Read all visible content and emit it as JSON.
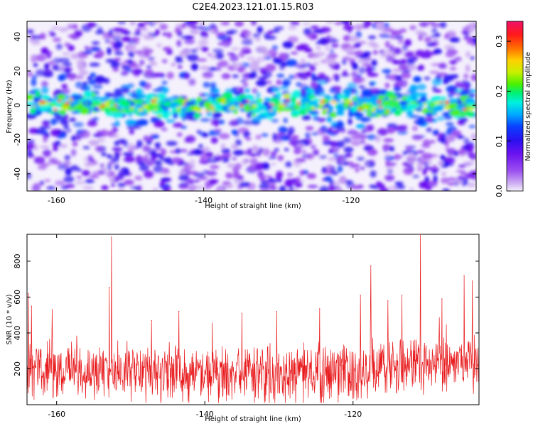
{
  "figure": {
    "title": "C2E4.2023.121.01.15.R03"
  },
  "colors": {
    "snr_line": "#e8191c",
    "colormap": [
      "#f4f0fc",
      "#caa8f2",
      "#9b4ff0",
      "#6a12f0",
      "#2a10f0",
      "#0a40ff",
      "#00a8ff",
      "#00f0e0",
      "#00f070",
      "#4cf000",
      "#c8f000",
      "#ffd000",
      "#ff7000",
      "#ff1a1a",
      "#f0106a"
    ]
  },
  "chart_data": [
    {
      "type": "heatmap",
      "xlabel": "Height of straight line (km)",
      "ylabel": "Frequency (Hz)",
      "xlim": [
        -164,
        -103
      ],
      "ylim": [
        -50,
        49
      ],
      "xticks": [
        -160,
        -140,
        -120
      ],
      "yticks": [
        -40,
        -20,
        0,
        20,
        40
      ],
      "colorbar": {
        "label": "Normalized spectral amplitude",
        "range": [
          0,
          0.34
        ],
        "ticks": [
          0.0,
          0.1,
          0.2,
          0.3
        ],
        "tick_labels": [
          "0.0",
          "0.1",
          "0.2",
          "0.3"
        ]
      },
      "features": {
        "band_center_hz": 0,
        "band_halfwidth_hz": 6,
        "band_peak_amplitude": 0.33
      }
    },
    {
      "type": "line",
      "xlabel": "Height of straight line (km)",
      "ylabel": "SNR (10 * v/v)",
      "xlim": [
        -164,
        -103
      ],
      "ylim": [
        0,
        950
      ],
      "xticks": [
        -160,
        -140,
        -120
      ],
      "yticks": [
        200,
        400,
        600,
        800
      ],
      "series": [
        {
          "x_step": 0.05,
          "baseline": 190,
          "noise_amplitude": 130,
          "peaks": [
            {
              "x": -152.6,
              "y": 935
            },
            {
              "x": -152.9,
              "y": 655
            },
            {
              "x": -110.9,
              "y": 950
            },
            {
              "x": -117.6,
              "y": 775
            },
            {
              "x": -105.0,
              "y": 720
            },
            {
              "x": -103.9,
              "y": 690
            },
            {
              "x": -113.4,
              "y": 610
            },
            {
              "x": -119.0,
              "y": 610
            },
            {
              "x": -163.8,
              "y": 620
            },
            {
              "x": -163.4,
              "y": 550
            },
            {
              "x": -115.3,
              "y": 580
            },
            {
              "x": -108.0,
              "y": 590
            },
            {
              "x": -124.5,
              "y": 535
            },
            {
              "x": -135.0,
              "y": 510
            },
            {
              "x": -143.5,
              "y": 520
            },
            {
              "x": -160.6,
              "y": 530
            },
            {
              "x": -130.3,
              "y": 520
            },
            {
              "x": -147.2,
              "y": 470
            }
          ]
        }
      ]
    }
  ]
}
